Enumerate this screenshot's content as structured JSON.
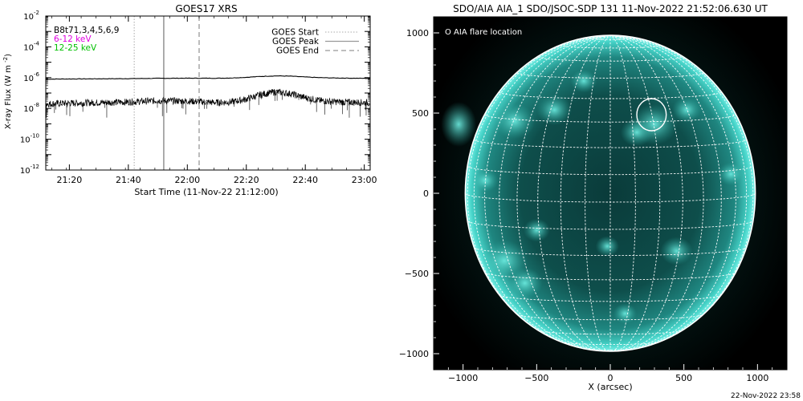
{
  "chart_data": [
    {
      "type": "line",
      "title": "GOES17 XRS",
      "xlabel": "Start Time (11-Nov-22 21:12:00)",
      "ylabel": "X-ray Flux (W m^-2)",
      "y_scale": "log",
      "ylim": [
        1e-12,
        0.01
      ],
      "xlim": [
        "2022-11-11 21:12",
        "2022-11-11 23:02"
      ],
      "x_ticks": [
        "21:20",
        "21:40",
        "22:00",
        "22:20",
        "22:40",
        "23:00"
      ],
      "y_ticks": [
        "10^-12",
        "10^-10",
        "10^-8",
        "10^-6",
        "10^-4",
        "10^-2"
      ],
      "legend_placement": "top-right",
      "info_labels": [
        {
          "text": "B8t71,3,4,5,6,9",
          "color": "#000000"
        },
        {
          "text": "6-12 keV",
          "color": "#e000e0"
        },
        {
          "text": "12-25 keV",
          "color": "#00c000"
        }
      ],
      "markers": [
        {
          "name": "GOES Start",
          "time": "2022-11-11 21:42",
          "style": "dotted",
          "color": "#bbbbbb"
        },
        {
          "name": "GOES Peak",
          "time": "2022-11-11 21:52",
          "style": "solid",
          "color": "#999999"
        },
        {
          "name": "GOES End",
          "time": "2022-11-11 22:04",
          "style": "dashed",
          "color": "#999999"
        }
      ],
      "series": [
        {
          "color": "#000000",
          "time": [
            "21:12",
            "21:20",
            "21:30",
            "21:40",
            "21:50",
            "22:00",
            "22:10",
            "22:15",
            "22:20",
            "22:25",
            "22:30",
            "22:35",
            "22:40",
            "22:45",
            "22:50",
            "23:00",
            "23:02"
          ],
          "values": [
            8e-07,
            8.2e-07,
            8.4e-07,
            8.6e-07,
            9e-07,
            9.2e-07,
            9.1e-07,
            9.5e-07,
            1.05e-06,
            1.2e-06,
            1.3e-06,
            1.25e-06,
            1.1e-06,
            1e-06,
            9.5e-07,
            9e-07,
            8.8e-07
          ]
        },
        {
          "color": "#000000",
          "time": [
            "21:12",
            "21:20",
            "21:30",
            "21:40",
            "21:50",
            "22:00",
            "22:10",
            "22:15",
            "22:20",
            "22:25",
            "22:30",
            "22:35",
            "22:40",
            "22:45",
            "22:50",
            "23:00",
            "23:02"
          ],
          "values": [
            2e-08,
            2.2e-08,
            2.4e-08,
            2.6e-08,
            3.2e-08,
            3e-08,
            2.4e-08,
            2.6e-08,
            4e-08,
            8e-08,
            1.2e-07,
            9e-08,
            5e-08,
            3.2e-08,
            2.7e-08,
            2.4e-08,
            2.3e-08
          ]
        }
      ]
    },
    {
      "type": "image",
      "title": "SDO/AIA AIA_1 SDO/JSOC-SDP 131 11-Nov-2022 21:52:06.630 UT",
      "xlabel": "X (arcsec)",
      "ylabel": "",
      "xlim": [
        -1200,
        1200
      ],
      "ylim": [
        -1100,
        1100
      ],
      "x_ticks": [
        "−1000",
        "−500",
        "0",
        "500",
        "1000"
      ],
      "y_ticks": [
        "1000",
        "500",
        "0",
        "−500",
        "−1000"
      ],
      "legend": "O AIA flare location",
      "flare_location": {
        "x": 280,
        "y": 490,
        "radius": 100
      },
      "colors": {
        "disk": "#0d4a48",
        "limb": "#4fe6da",
        "grid": "#ffffff"
      }
    }
  ],
  "footer": {
    "timestamp": "22-Nov-2022 23:58"
  }
}
